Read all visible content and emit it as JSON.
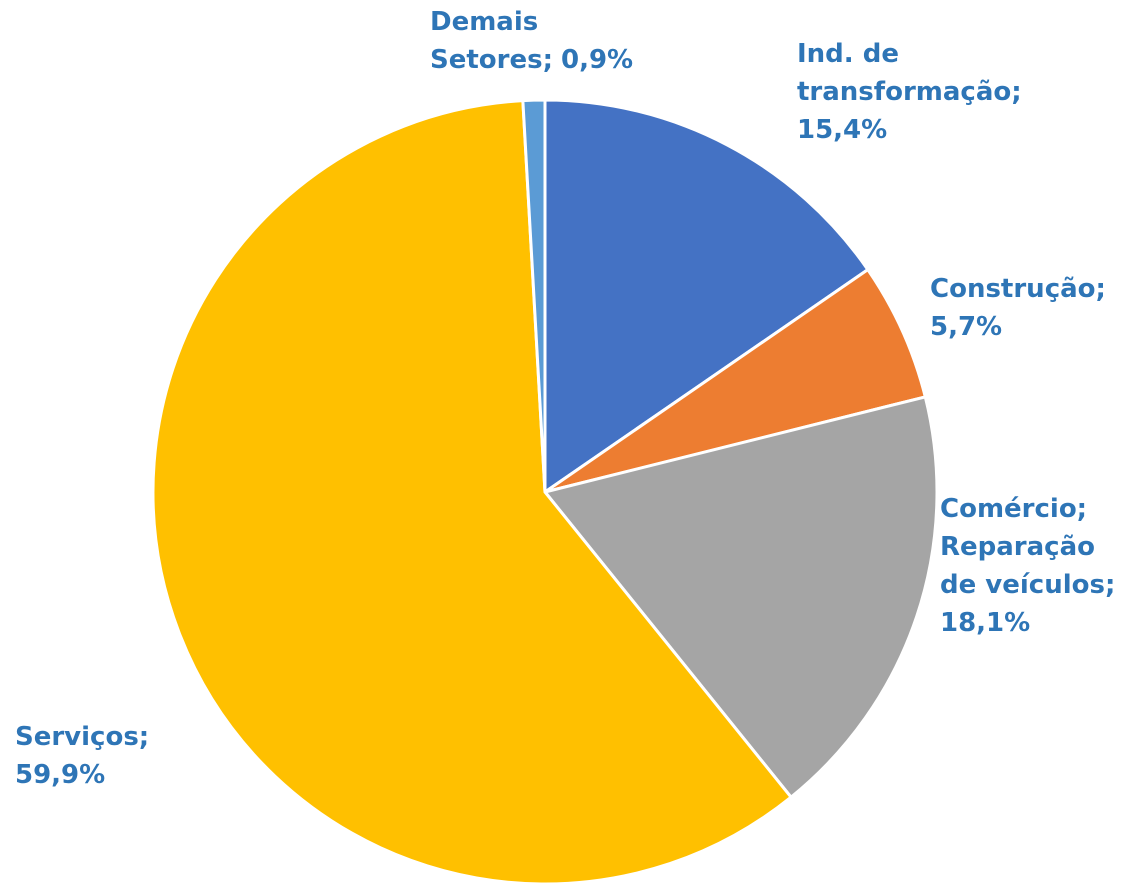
{
  "chart_data": {
    "type": "pie",
    "categories": [
      "Ind. de\ntransformação;",
      "Construção;",
      "Comércio;\nReparação\nde veículos;",
      "Serviços;",
      "Demais\nSetores;"
    ],
    "values": [
      15.4,
      5.7,
      18.1,
      59.9,
      0.9
    ],
    "value_labels": [
      "15,4%",
      "5,7%",
      "18,1%",
      "59,9%",
      "0,9%"
    ],
    "colors": [
      "#4472c4",
      "#ed7d31",
      "#a5a5a5",
      "#ffc000",
      "#5b9bd5"
    ],
    "label_color": "#2e75b6"
  }
}
